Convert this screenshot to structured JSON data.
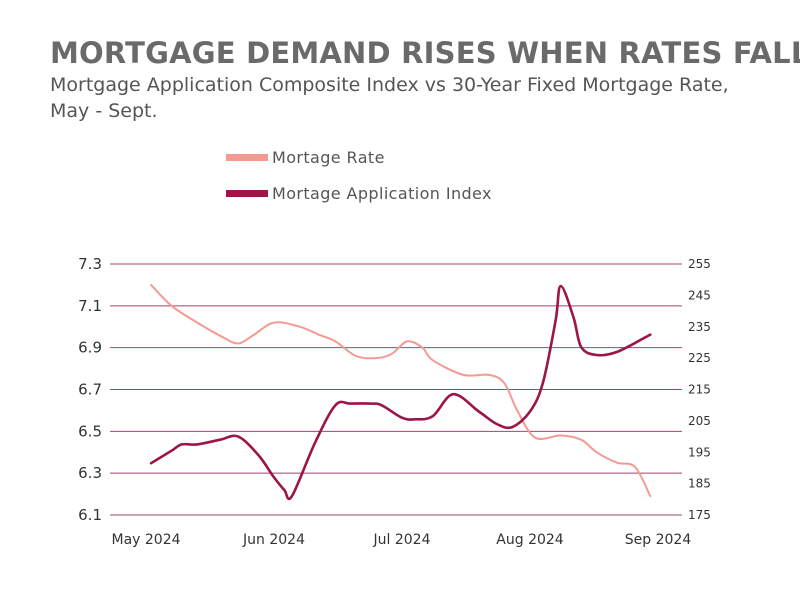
{
  "title": "MORTGAGE DEMAND RISES WHEN RATES FALL",
  "subtitle": "Mortgage Application Composite Index vs 30-Year Fixed Mortgage Rate, May - Sept.",
  "chart_data": {
    "type": "line",
    "title": "MORTGAGE DEMAND RISES WHEN RATES FALL",
    "subtitle": "Mortgage Application Composite Index vs 30-Year Fixed Mortgage Rate, May - Sept.",
    "legend_position": "top",
    "colors": {
      "rate": "#f59a93",
      "index": "#9c1448",
      "grid": "#a0446e"
    },
    "x_ticks": [
      "May 2024",
      "Jun 2024",
      "Jul 2024",
      "Aug 2024",
      "Sep  2024"
    ],
    "xlim": [
      0,
      4
    ],
    "y_left": {
      "ylim": [
        6.1,
        7.3
      ],
      "ticks": [
        "6.1",
        "6.3",
        "6.5",
        "6.7",
        "6.9",
        "7.1",
        "7.3"
      ]
    },
    "y_right": {
      "ylim": [
        175,
        255
      ],
      "ticks": [
        "175",
        "185",
        "195",
        "205",
        "215",
        "225",
        "235",
        "245",
        "255"
      ]
    },
    "series": [
      {
        "name": "Mortage Rate",
        "axis": "left",
        "x": [
          0.04,
          0.2,
          0.4,
          0.6,
          0.72,
          0.84,
          1.0,
          1.2,
          1.36,
          1.48,
          1.64,
          1.8,
          1.92,
          2.04,
          2.16,
          2.24,
          2.48,
          2.68,
          2.8,
          2.9,
          3.04,
          3.24,
          3.4,
          3.52,
          3.68,
          3.82,
          3.94
        ],
        "values": [
          7.2,
          7.1,
          7.02,
          6.95,
          6.92,
          6.96,
          7.02,
          7.0,
          6.96,
          6.93,
          6.86,
          6.85,
          6.87,
          6.93,
          6.9,
          6.84,
          6.77,
          6.77,
          6.73,
          6.6,
          6.47,
          6.48,
          6.46,
          6.4,
          6.35,
          6.33,
          6.19
        ]
      },
      {
        "name": "Mortage Application Index",
        "axis": "right",
        "x": [
          0.04,
          0.2,
          0.28,
          0.4,
          0.58,
          0.72,
          0.88,
          1.0,
          1.08,
          1.14,
          1.32,
          1.48,
          1.6,
          1.76,
          1.84,
          2.0,
          2.1,
          2.24,
          2.4,
          2.6,
          2.74,
          2.86,
          3.0,
          3.1,
          3.2,
          3.24,
          3.34,
          3.4,
          3.52,
          3.68,
          3.94
        ],
        "values": [
          191.5,
          195.5,
          197.5,
          197.5,
          199.0,
          200.0,
          194.0,
          187.0,
          183.0,
          181.0,
          198.0,
          210.0,
          210.5,
          210.5,
          210.0,
          206.0,
          205.5,
          206.5,
          213.5,
          208.0,
          204.0,
          203.0,
          208.0,
          217.0,
          237.0,
          248.0,
          238.0,
          228.5,
          226.0,
          227.0,
          232.5
        ]
      }
    ]
  }
}
